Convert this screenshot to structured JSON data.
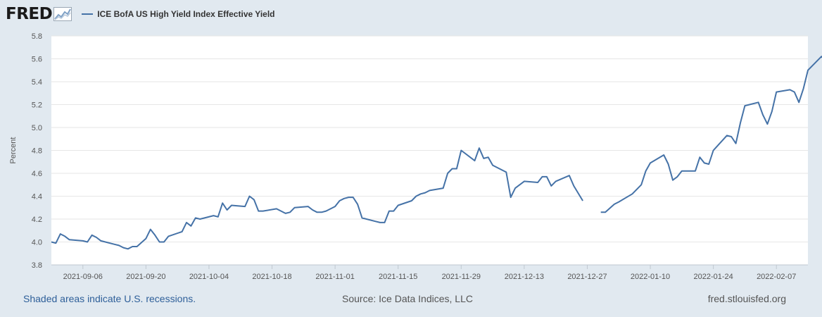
{
  "header": {
    "logo_text": "FRED",
    "legend_label": "ICE BofA US High Yield Index Effective Yield"
  },
  "colors": {
    "series": "#4572a7",
    "page_background": "#e1e9f0",
    "plot_background": "#ffffff",
    "grid": "#e6e6e6",
    "link": "#2e5f99"
  },
  "footer": {
    "recession_note": "Shaded areas indicate U.S. recessions.",
    "source": "Source: Ice Data Indices, LLC",
    "site": "fred.stlouisfed.org"
  },
  "chart_data": {
    "type": "line",
    "title": "",
    "xlabel": "",
    "ylabel": "Percent",
    "ylim": [
      3.8,
      5.8
    ],
    "yticks": [
      "3.8",
      "4.0",
      "4.2",
      "4.4",
      "4.6",
      "4.8",
      "5.0",
      "5.2",
      "5.4",
      "5.6",
      "5.8"
    ],
    "xlim": [
      "2021-08-30",
      "2022-02-14"
    ],
    "xticks": [
      "2021-09-06",
      "2021-09-20",
      "2021-10-04",
      "2021-10-18",
      "2021-11-01",
      "2021-11-15",
      "2021-11-29",
      "2021-12-13",
      "2021-12-27",
      "2022-01-10",
      "2022-01-24",
      "2022-02-07"
    ],
    "grid": true,
    "legend": "top-left",
    "series": [
      {
        "name": "ICE BofA US High Yield Index Effective Yield",
        "color": "#4572a7",
        "points": [
          [
            "2021-08-30",
            4.0
          ],
          [
            "2021-08-31",
            3.99
          ],
          [
            "2021-09-01",
            4.07
          ],
          [
            "2021-09-02",
            4.05
          ],
          [
            "2021-09-03",
            4.02
          ],
          [
            "2021-09-06",
            4.01
          ],
          [
            "2021-09-07",
            4.0
          ],
          [
            "2021-09-08",
            4.06
          ],
          [
            "2021-09-09",
            4.04
          ],
          [
            "2021-09-10",
            4.01
          ],
          [
            "2021-09-13",
            3.98
          ],
          [
            "2021-09-14",
            3.97
          ],
          [
            "2021-09-15",
            3.95
          ],
          [
            "2021-09-16",
            3.94
          ],
          [
            "2021-09-17",
            3.96
          ],
          [
            "2021-09-18",
            3.96
          ],
          [
            "2021-09-20",
            4.03
          ],
          [
            "2021-09-21",
            4.11
          ],
          [
            "2021-09-22",
            4.06
          ],
          [
            "2021-09-23",
            4.0
          ],
          [
            "2021-09-24",
            4.0
          ],
          [
            "2021-09-25",
            4.05
          ],
          [
            "2021-09-28",
            4.09
          ],
          [
            "2021-09-29",
            4.17
          ],
          [
            "2021-09-30",
            4.14
          ],
          [
            "2021-10-01",
            4.21
          ],
          [
            "2021-10-02",
            4.2
          ],
          [
            "2021-10-05",
            4.23
          ],
          [
            "2021-10-06",
            4.22
          ],
          [
            "2021-10-07",
            4.34
          ],
          [
            "2021-10-08",
            4.28
          ],
          [
            "2021-10-09",
            4.32
          ],
          [
            "2021-10-12",
            4.31
          ],
          [
            "2021-10-13",
            4.4
          ],
          [
            "2021-10-14",
            4.37
          ],
          [
            "2021-10-15",
            4.27
          ],
          [
            "2021-10-16",
            4.27
          ],
          [
            "2021-10-19",
            4.29
          ],
          [
            "2021-10-20",
            4.27
          ],
          [
            "2021-10-21",
            4.25
          ],
          [
            "2021-10-22",
            4.26
          ],
          [
            "2021-10-23",
            4.3
          ],
          [
            "2021-10-26",
            4.31
          ],
          [
            "2021-10-27",
            4.28
          ],
          [
            "2021-10-28",
            4.26
          ],
          [
            "2021-10-29",
            4.26
          ],
          [
            "2021-10-30",
            4.27
          ],
          [
            "2021-11-01",
            4.31
          ],
          [
            "2021-11-02",
            4.36
          ],
          [
            "2021-11-03",
            4.38
          ],
          [
            "2021-11-04",
            4.39
          ],
          [
            "2021-11-05",
            4.39
          ],
          [
            "2021-11-06",
            4.33
          ],
          [
            "2021-11-07",
            4.21
          ],
          [
            "2021-11-10",
            4.18
          ],
          [
            "2021-11-11",
            4.17
          ],
          [
            "2021-11-12",
            4.17
          ],
          [
            "2021-11-13",
            4.27
          ],
          [
            "2021-11-14",
            4.27
          ],
          [
            "2021-11-15",
            4.32
          ],
          [
            "2021-11-18",
            4.36
          ],
          [
            "2021-11-19",
            4.4
          ],
          [
            "2021-11-20",
            4.42
          ],
          [
            "2021-11-21",
            4.43
          ],
          [
            "2021-11-22",
            4.45
          ],
          [
            "2021-11-25",
            4.47
          ],
          [
            "2021-11-26",
            4.6
          ],
          [
            "2021-11-27",
            4.64
          ],
          [
            "2021-11-28",
            4.64
          ],
          [
            "2021-11-29",
            4.8
          ],
          [
            "2021-12-02",
            4.71
          ],
          [
            "2021-12-03",
            4.82
          ],
          [
            "2021-12-04",
            4.73
          ],
          [
            "2021-12-05",
            4.74
          ],
          [
            "2021-12-06",
            4.67
          ],
          [
            "2021-12-09",
            4.61
          ],
          [
            "2021-12-10",
            4.39
          ],
          [
            "2021-12-11",
            4.47
          ],
          [
            "2021-12-13",
            4.53
          ],
          [
            "2021-12-16",
            4.52
          ],
          [
            "2021-12-17",
            4.57
          ],
          [
            "2021-12-18",
            4.57
          ],
          [
            "2021-12-19",
            4.49
          ],
          [
            "2021-12-20",
            4.53
          ],
          [
            "2021-12-23",
            4.58
          ],
          [
            "2021-12-24",
            4.49
          ],
          [
            "2021-12-26",
            4.36
          ],
          null,
          [
            "2021-12-30",
            4.26
          ],
          [
            "2021-12-31",
            4.26
          ],
          [
            "2022-01-02",
            4.33
          ],
          [
            "2022-01-03",
            4.35
          ],
          [
            "2022-01-06",
            4.42
          ],
          [
            "2022-01-08",
            4.5
          ],
          [
            "2022-01-09",
            4.62
          ],
          [
            "2022-01-10",
            4.69
          ],
          [
            "2022-01-13",
            4.76
          ],
          [
            "2022-01-14",
            4.68
          ],
          [
            "2022-01-15",
            4.54
          ],
          [
            "2022-01-16",
            4.57
          ],
          [
            "2022-01-17",
            4.62
          ],
          [
            "2022-01-20",
            4.62
          ],
          [
            "2022-01-21",
            4.74
          ],
          [
            "2022-01-22",
            4.69
          ],
          [
            "2022-01-23",
            4.68
          ],
          [
            "2022-01-24",
            4.8
          ],
          [
            "2022-01-27",
            4.93
          ],
          [
            "2022-01-28",
            4.92
          ],
          [
            "2022-01-29",
            4.86
          ],
          [
            "2022-01-30",
            5.04
          ],
          [
            "2022-01-31",
            5.19
          ],
          [
            "2022-02-03",
            5.22
          ],
          [
            "2022-02-04",
            5.11
          ],
          [
            "2022-02-05",
            5.03
          ],
          [
            "2022-02-06",
            5.14
          ],
          [
            "2022-02-07",
            5.31
          ],
          [
            "2022-02-10",
            5.33
          ],
          [
            "2022-02-11",
            5.31
          ],
          [
            "2022-02-12",
            5.22
          ],
          [
            "2022-02-13",
            5.34
          ],
          [
            "2022-02-14",
            5.5
          ],
          [
            "2022-02-17",
            5.62
          ],
          [
            "2022-02-18",
            5.58
          ],
          [
            "2022-02-20",
            5.56
          ]
        ]
      }
    ]
  }
}
